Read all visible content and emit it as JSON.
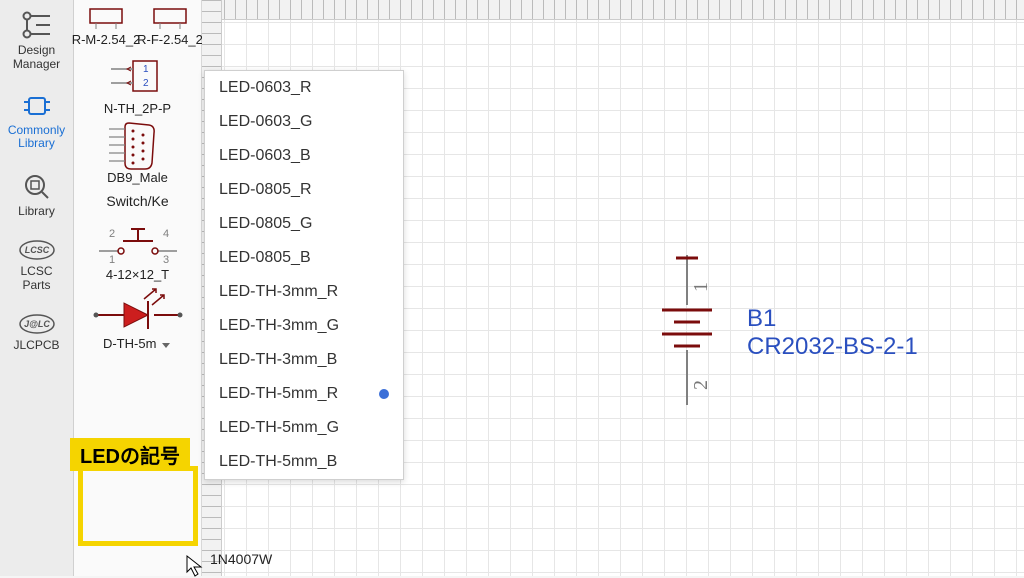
{
  "colors": {
    "grid": "#e6e6e6",
    "wire_maroon": "#7b0c0c",
    "accent_blue": "#1a6fd4",
    "net_blue": "#2a4fbf",
    "callout_yellow": "#f5d400",
    "pin_gray": "#808080"
  },
  "toolbar": [
    {
      "id": "design-manager",
      "label": "Design\nManager",
      "active": false
    },
    {
      "id": "commonly-library",
      "label": "Commonly\nLibrary",
      "active": true
    },
    {
      "id": "library",
      "label": "Library",
      "active": false
    },
    {
      "id": "lcsc-parts",
      "label": "LCSC\nParts",
      "active": false
    },
    {
      "id": "jlcpcb",
      "label": "JLCPCB",
      "active": false
    }
  ],
  "parts": [
    {
      "id": "hdr-m",
      "caption": "R-M-2.54_2",
      "thumb": "hdr"
    },
    {
      "id": "hdr-f",
      "caption": "R-F-2.54_2",
      "thumb": "hdr"
    },
    {
      "id": "conn2p",
      "caption": "N-TH_2P-P",
      "thumb": "conn2p"
    },
    {
      "id": "db9",
      "caption": "DB9_Male",
      "thumb": "db9"
    },
    {
      "id": "switch",
      "caption": "Switch/Ke",
      "thumb": "none"
    },
    {
      "id": "tact",
      "caption": "4-12×12_T",
      "thumb": "tact"
    },
    {
      "id": "led",
      "caption": "D-TH-5m",
      "thumb": "led",
      "hasDropdown": true
    },
    {
      "id": "diode",
      "caption": "1N4007W",
      "thumb": "none"
    }
  ],
  "menu": {
    "items": [
      "LED-0603_R",
      "LED-0603_G",
      "LED-0603_B",
      "LED-0805_R",
      "LED-0805_G",
      "LED-0805_B",
      "LED-TH-3mm_R",
      "LED-TH-3mm_G",
      "LED-TH-3mm_B",
      "LED-TH-5mm_R",
      "LED-TH-5mm_G",
      "LED-TH-5mm_B"
    ],
    "highlighted_index": 9,
    "dot_color": "#3b6fd8"
  },
  "canvas": {
    "component": {
      "designator": "B1",
      "value": "CR2032-BS-2-1",
      "pin_top": "1",
      "pin_bottom": "2"
    }
  },
  "callout": {
    "label": "LEDの記号"
  }
}
